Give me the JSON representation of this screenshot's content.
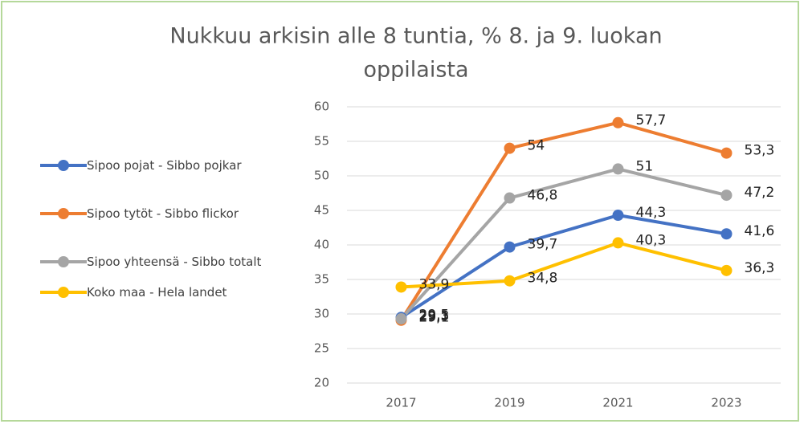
{
  "chart_data": {
    "type": "line",
    "title_lines": [
      "Nukkuu arkisin alle 8 tuntia, % 8. ja 9. luokan",
      "oppilaista"
    ],
    "categories": [
      "2017",
      "2019",
      "2021",
      "2023"
    ],
    "series": [
      {
        "name": "Sipoo pojat - Sibbo pojkar",
        "color": "#4472c4",
        "values": [
          29.5,
          39.7,
          44.3,
          41.6
        ],
        "value_labels": [
          "29,5",
          "39,7",
          "44,3",
          "41,6"
        ]
      },
      {
        "name": "Sipoo tytöt - Sibbo flickor",
        "color": "#ed7d31",
        "values": [
          29.1,
          54,
          57.7,
          53.3
        ],
        "value_labels": [
          "29,1",
          "54",
          "57,7",
          "53,3"
        ]
      },
      {
        "name": "Sipoo yhteensä - Sibbo totalt",
        "color": "#a5a5a5",
        "values": [
          29.3,
          46.8,
          51,
          47.2
        ],
        "value_labels": [
          "29,3",
          "46,8",
          "51",
          "47,2"
        ]
      },
      {
        "name": "Koko maa - Hela landet",
        "color": "#ffc000",
        "values": [
          33.9,
          34.8,
          40.3,
          36.3
        ],
        "value_labels": [
          "33,9",
          "34,8",
          "40,3",
          "36,3"
        ]
      }
    ],
    "ylim": [
      20,
      60
    ],
    "yticks": [
      20,
      25,
      30,
      35,
      40,
      45,
      50,
      55,
      60
    ],
    "grid": true,
    "legend": "left"
  }
}
